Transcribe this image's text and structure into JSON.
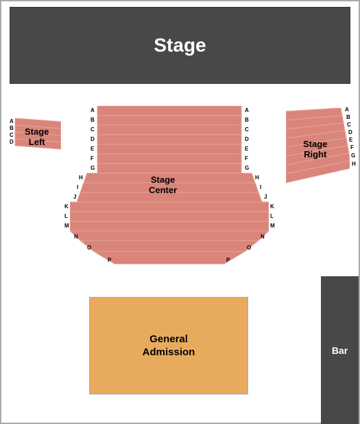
{
  "colors": {
    "stage_bg": "#484848",
    "stage_text": "#ffffff",
    "seat_fill": "#d9857a",
    "seat_stroke": "#e8a299",
    "ga_bg": "#e8ab5e",
    "bar_bg": "#484848",
    "bar_text": "#ffffff",
    "label_text": "#000000",
    "border": "#aaaaaa"
  },
  "stage": {
    "label": "Stage",
    "fontsize": 28
  },
  "stage_left": {
    "label": "Stage\nLeft",
    "rows": [
      "A",
      "B",
      "C",
      "D"
    ],
    "label_fontsize": 13,
    "row_fontsize": 8
  },
  "stage_right": {
    "label": "Stage\nRight",
    "rows": [
      "A",
      "B",
      "C",
      "D",
      "E",
      "F",
      "G",
      "H"
    ],
    "label_fontsize": 13,
    "row_fontsize": 8
  },
  "stage_center": {
    "label": "Stage\nCenter",
    "rows": [
      "A",
      "B",
      "C",
      "D",
      "E",
      "F",
      "G",
      "H",
      "I",
      "J",
      "K",
      "L",
      "M",
      "N",
      "O",
      "P"
    ],
    "label_fontsize": 13,
    "row_fontsize": 8,
    "widen_at": "H",
    "taper_at": "N"
  },
  "ga": {
    "label": "General\nAdmission",
    "fontsize": 15
  },
  "bar": {
    "label": "Bar",
    "fontsize": 14
  }
}
